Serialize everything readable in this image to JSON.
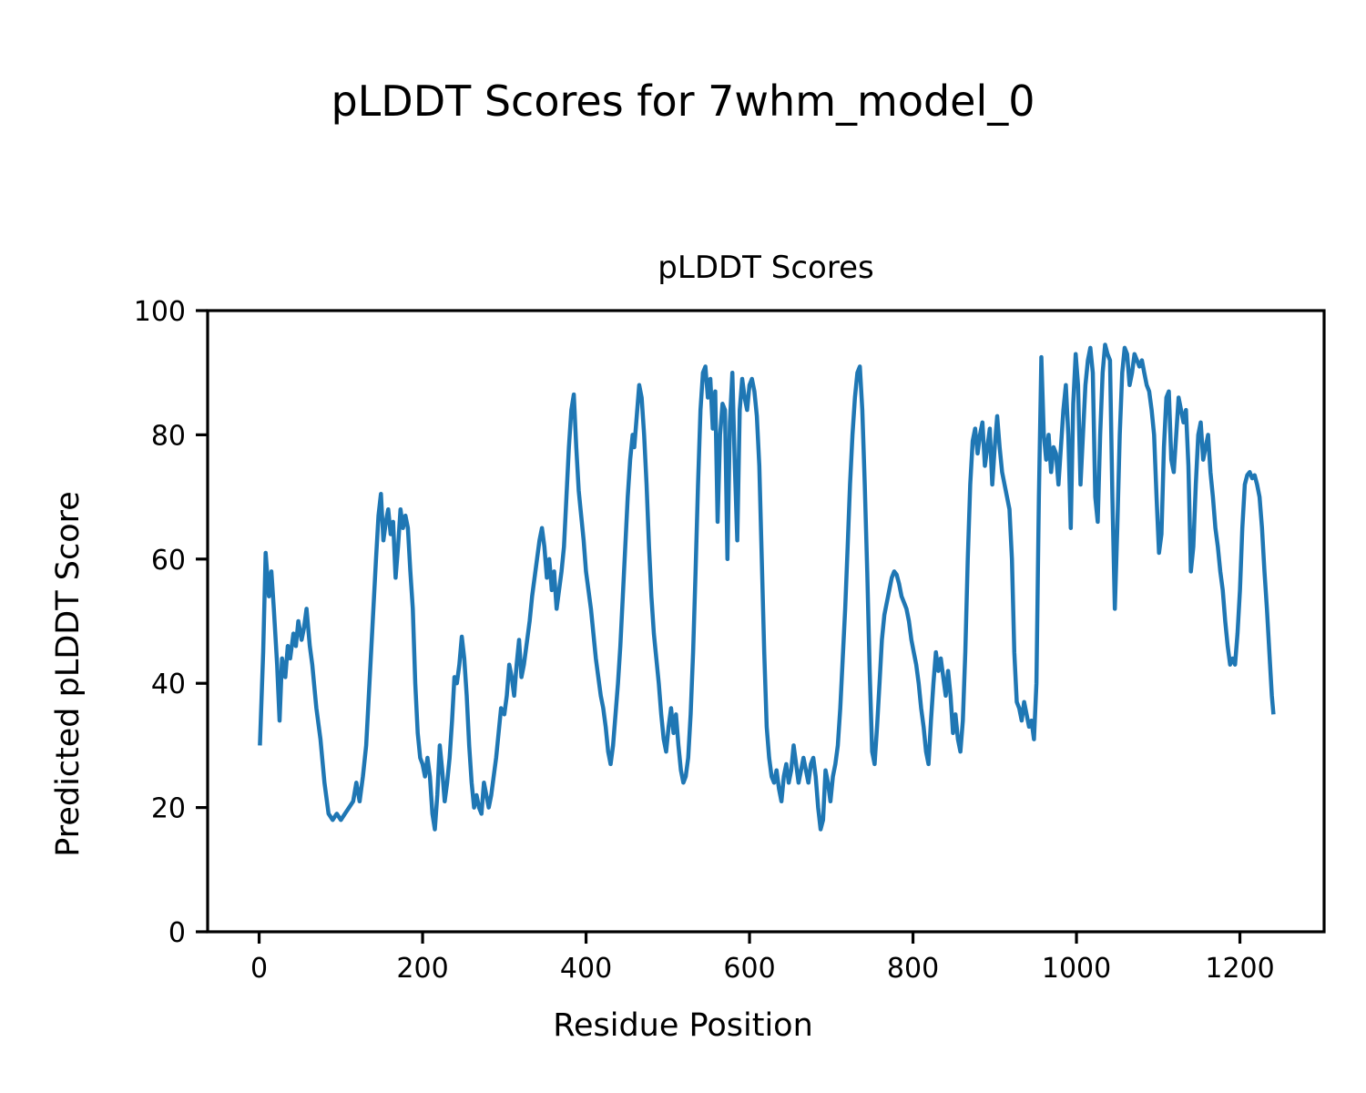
{
  "figure": {
    "title": "pLDDT Scores for 7whm_model_0",
    "axes_title": "pLDDT Scores",
    "xlabel": "Residue Position",
    "ylabel": "Predicted pLDDT Score"
  },
  "chart_data": {
    "type": "line",
    "title": "pLDDT Scores",
    "xlabel": "Residue Position",
    "ylabel": "Predicted pLDDT Score",
    "line_color": "#1f77b4",
    "background_color": "#ffffff",
    "grid": false,
    "legend": null,
    "xlim": [
      -63,
      1303
    ],
    "ylim": [
      0,
      100
    ],
    "xticks": [
      0,
      200,
      400,
      600,
      800,
      1000,
      1200
    ],
    "yticks": [
      0,
      20,
      40,
      60,
      80,
      100
    ],
    "series": [
      {
        "name": "pLDDT",
        "x": [
          1,
          5,
          8,
          12,
          15,
          18,
          22,
          25,
          28,
          32,
          35,
          38,
          42,
          45,
          48,
          52,
          55,
          58,
          62,
          65,
          70,
          75,
          80,
          85,
          90,
          95,
          100,
          105,
          110,
          115,
          119,
          123,
          127,
          131,
          135,
          139,
          143,
          146,
          149,
          152,
          155,
          158,
          161,
          164,
          167,
          170,
          173,
          176,
          179,
          182,
          185,
          188,
          191,
          194,
          197,
          200,
          203,
          206,
          209,
          212,
          215,
          218,
          221,
          224,
          227,
          230,
          233,
          236,
          239,
          242,
          245,
          248,
          251,
          254,
          257,
          260,
          263,
          266,
          269,
          272,
          275,
          278,
          281,
          284,
          287,
          290,
          293,
          296,
          300,
          303,
          306,
          309,
          312,
          315,
          318,
          321,
          324,
          328,
          331,
          334,
          337,
          340,
          343,
          346,
          349,
          352,
          355,
          358,
          361,
          364,
          367,
          370,
          373,
          376,
          379,
          382,
          385,
          388,
          391,
          394,
          397,
          400,
          403,
          406,
          409,
          412,
          415,
          418,
          421,
          424,
          427,
          430,
          433,
          436,
          439,
          442,
          445,
          448,
          451,
          454,
          457,
          459,
          462,
          465,
          468,
          471,
          474,
          477,
          480,
          483,
          486,
          489,
          492,
          495,
          498,
          501,
          504,
          507,
          510,
          513,
          516,
          519,
          522,
          525,
          528,
          531,
          534,
          537,
          540,
          543,
          546,
          549,
          552,
          555,
          558,
          561,
          564,
          567,
          570,
          573,
          576,
          579,
          582,
          585,
          588,
          591,
          594,
          597,
          600,
          603,
          606,
          609,
          612,
          615,
          618,
          621,
          624,
          627,
          630,
          633,
          636,
          639,
          642,
          645,
          648,
          651,
          654,
          657,
          660,
          663,
          666,
          669,
          672,
          675,
          678,
          681,
          684,
          687,
          690,
          693,
          696,
          699,
          702,
          705,
          708,
          711,
          714,
          717,
          720,
          723,
          726,
          729,
          732,
          735,
          738,
          741,
          744,
          747,
          750,
          753,
          756,
          759,
          762,
          765,
          768,
          771,
          774,
          777,
          780,
          783,
          786,
          789,
          792,
          795,
          798,
          801,
          804,
          807,
          810,
          813,
          816,
          819,
          822,
          825,
          828,
          831,
          834,
          837,
          840,
          843,
          846,
          849,
          852,
          855,
          858,
          861,
          864,
          867,
          870,
          873,
          876,
          879,
          882,
          885,
          888,
          891,
          894,
          897,
          900,
          903,
          906,
          909,
          912,
          915,
          918,
          921,
          924,
          927,
          930,
          933,
          936,
          939,
          942,
          945,
          948,
          951,
          954,
          957,
          960,
          963,
          966,
          969,
          972,
          975,
          978,
          981,
          984,
          987,
          990,
          993,
          996,
          999,
          1002,
          1005,
          1008,
          1011,
          1014,
          1017,
          1020,
          1023,
          1026,
          1029,
          1032,
          1035,
          1038,
          1041,
          1044,
          1047,
          1050,
          1053,
          1056,
          1059,
          1062,
          1065,
          1068,
          1071,
          1074,
          1077,
          1080,
          1083,
          1086,
          1089,
          1092,
          1095,
          1098,
          1101,
          1104,
          1107,
          1110,
          1113,
          1116,
          1119,
          1122,
          1125,
          1128,
          1131,
          1134,
          1137,
          1140,
          1143,
          1146,
          1149,
          1152,
          1155,
          1158,
          1161,
          1164,
          1167,
          1170,
          1173,
          1176,
          1179,
          1182,
          1185,
          1188,
          1191,
          1194,
          1197,
          1200,
          1203,
          1206,
          1209,
          1212,
          1215,
          1218,
          1221,
          1224,
          1227,
          1230,
          1233,
          1236,
          1239,
          1241
        ],
        "y": [
          30,
          45,
          61,
          54,
          58,
          52,
          43,
          34,
          44,
          41,
          46,
          44,
          48,
          46,
          50,
          47,
          49,
          52,
          46,
          43,
          36,
          31,
          24,
          19,
          18,
          19,
          18,
          19,
          20,
          21,
          24,
          21,
          25,
          30,
          40,
          50,
          60,
          67,
          70.5,
          63,
          66,
          68,
          64,
          66,
          57,
          62,
          68,
          65,
          67,
          65,
          58,
          52,
          40,
          32,
          28,
          27,
          25,
          28,
          25,
          19,
          16.5,
          22,
          30,
          26,
          21,
          24,
          28,
          34,
          41,
          40,
          43,
          47.5,
          44,
          38,
          30,
          24,
          20,
          22,
          20,
          19,
          24,
          22,
          20,
          22,
          25,
          28,
          32,
          36,
          35,
          38,
          43,
          41,
          38,
          43,
          47,
          41,
          43,
          47,
          50,
          54,
          57,
          60,
          63,
          65,
          62,
          57,
          60,
          55,
          58,
          52,
          55,
          58,
          62,
          70,
          78,
          84,
          86.5,
          78,
          71,
          67,
          63,
          58,
          55,
          52,
          48,
          44,
          41,
          38,
          36,
          33,
          29,
          27,
          30,
          35,
          40,
          46,
          54,
          62,
          70,
          76,
          80,
          78,
          83,
          88,
          86,
          80,
          72,
          62,
          54,
          48,
          44,
          40,
          35,
          31,
          29,
          33,
          36,
          32,
          35,
          30,
          26,
          24,
          25,
          28,
          35,
          45,
          58,
          72,
          84,
          90,
          91,
          86,
          89,
          81,
          87,
          66,
          80,
          85,
          84,
          60,
          82,
          90,
          75,
          63,
          84,
          89,
          86,
          84,
          88,
          89,
          87,
          83,
          75,
          60,
          45,
          33,
          28,
          25,
          24,
          26,
          23,
          21,
          25,
          27,
          24,
          26,
          30,
          27,
          24,
          26,
          28,
          26,
          24,
          27,
          28,
          25,
          20,
          16.5,
          18,
          26,
          24,
          21,
          25,
          27,
          30,
          36,
          44,
          52,
          62,
          72,
          80,
          86,
          90,
          91,
          84,
          72,
          58,
          42,
          29,
          27,
          33,
          40,
          47,
          51,
          53,
          55,
          57,
          58,
          57.5,
          56,
          54,
          53,
          52,
          50,
          47,
          45,
          43,
          40,
          36,
          33,
          29,
          27,
          34,
          40,
          45,
          42,
          44,
          41,
          38,
          42,
          38,
          32,
          35,
          31,
          29,
          34,
          45,
          60,
          72,
          79,
          81,
          77,
          80,
          82,
          75,
          78,
          81,
          72,
          78,
          83,
          78,
          74,
          72,
          70,
          68,
          60,
          45,
          37,
          36,
          34,
          37,
          35,
          33,
          34,
          31,
          40,
          70,
          92.5,
          80,
          76,
          80,
          74,
          78,
          77,
          72,
          78,
          84,
          88,
          80,
          65,
          85,
          93,
          88,
          72,
          80,
          88,
          92,
          94,
          90,
          70,
          66,
          80,
          90,
          94.5,
          93,
          92,
          70,
          52,
          65,
          80,
          90,
          94,
          93,
          88,
          90,
          93,
          92,
          91,
          92,
          90,
          88,
          87,
          84,
          80,
          70,
          61,
          64,
          78,
          86,
          87,
          76,
          74,
          80,
          86,
          84,
          82,
          84,
          75,
          58,
          62,
          72,
          80,
          82,
          76,
          78,
          80,
          74,
          70,
          65,
          62,
          58,
          55,
          50,
          46,
          43,
          44,
          43,
          48,
          55,
          65,
          72,
          73.5,
          74,
          73,
          73.5,
          72,
          70,
          65,
          58,
          52,
          45,
          38,
          35
        ]
      }
    ]
  }
}
